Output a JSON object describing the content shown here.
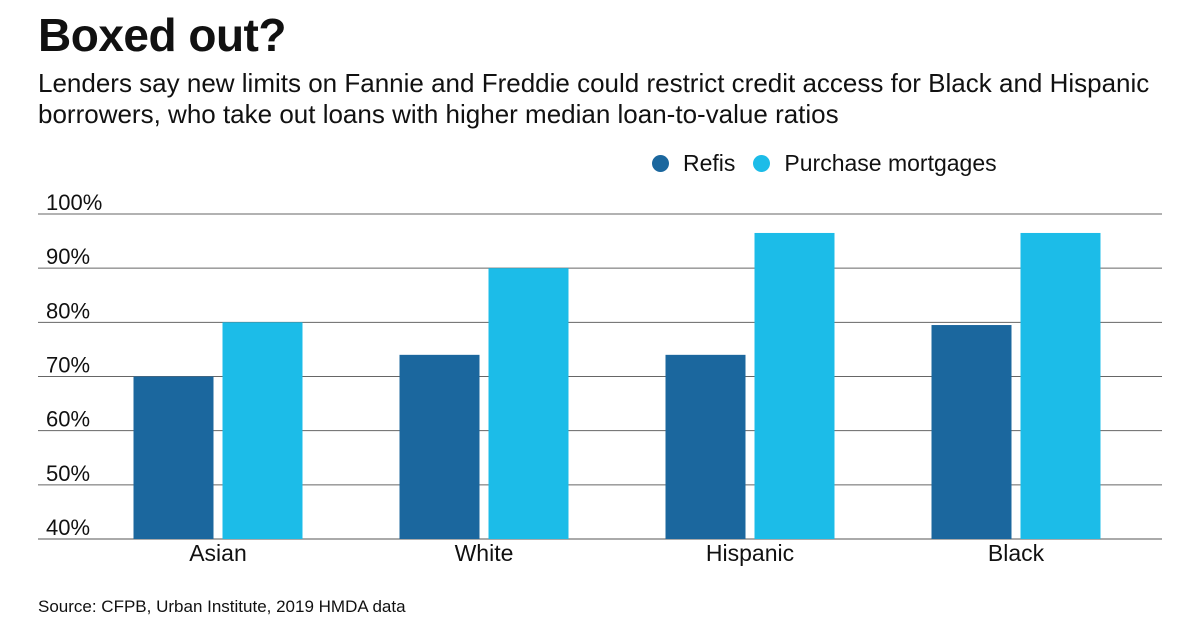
{
  "title": "Boxed out?",
  "subtitle": "Lenders say new limits on Fannie and Freddie could restrict credit access for Black and Hispanic borrowers, who take out loans with higher median loan-to-value ratios",
  "source": "Source: CFPB, Urban Institute, 2019 HMDA data",
  "chart_data": {
    "type": "bar",
    "title": "Boxed out?",
    "xlabel": "",
    "ylabel": "",
    "categories": [
      "Asian",
      "White",
      "Hispanic",
      "Black"
    ],
    "series": [
      {
        "name": "Refis",
        "color": "#1b679e",
        "values": [
          70,
          74,
          74,
          79.5
        ]
      },
      {
        "name": "Purchase mortgages",
        "color": "#1cbce8",
        "values": [
          80,
          90,
          96.5,
          96.5
        ]
      }
    ],
    "ylim": [
      40,
      100
    ],
    "yticks": [
      40,
      50,
      60,
      70,
      80,
      90,
      100
    ],
    "ytick_labels": [
      "40%",
      "50%",
      "60%",
      "70%",
      "80%",
      "90%",
      "100%"
    ],
    "grid": true,
    "legend_position": "top-right"
  }
}
